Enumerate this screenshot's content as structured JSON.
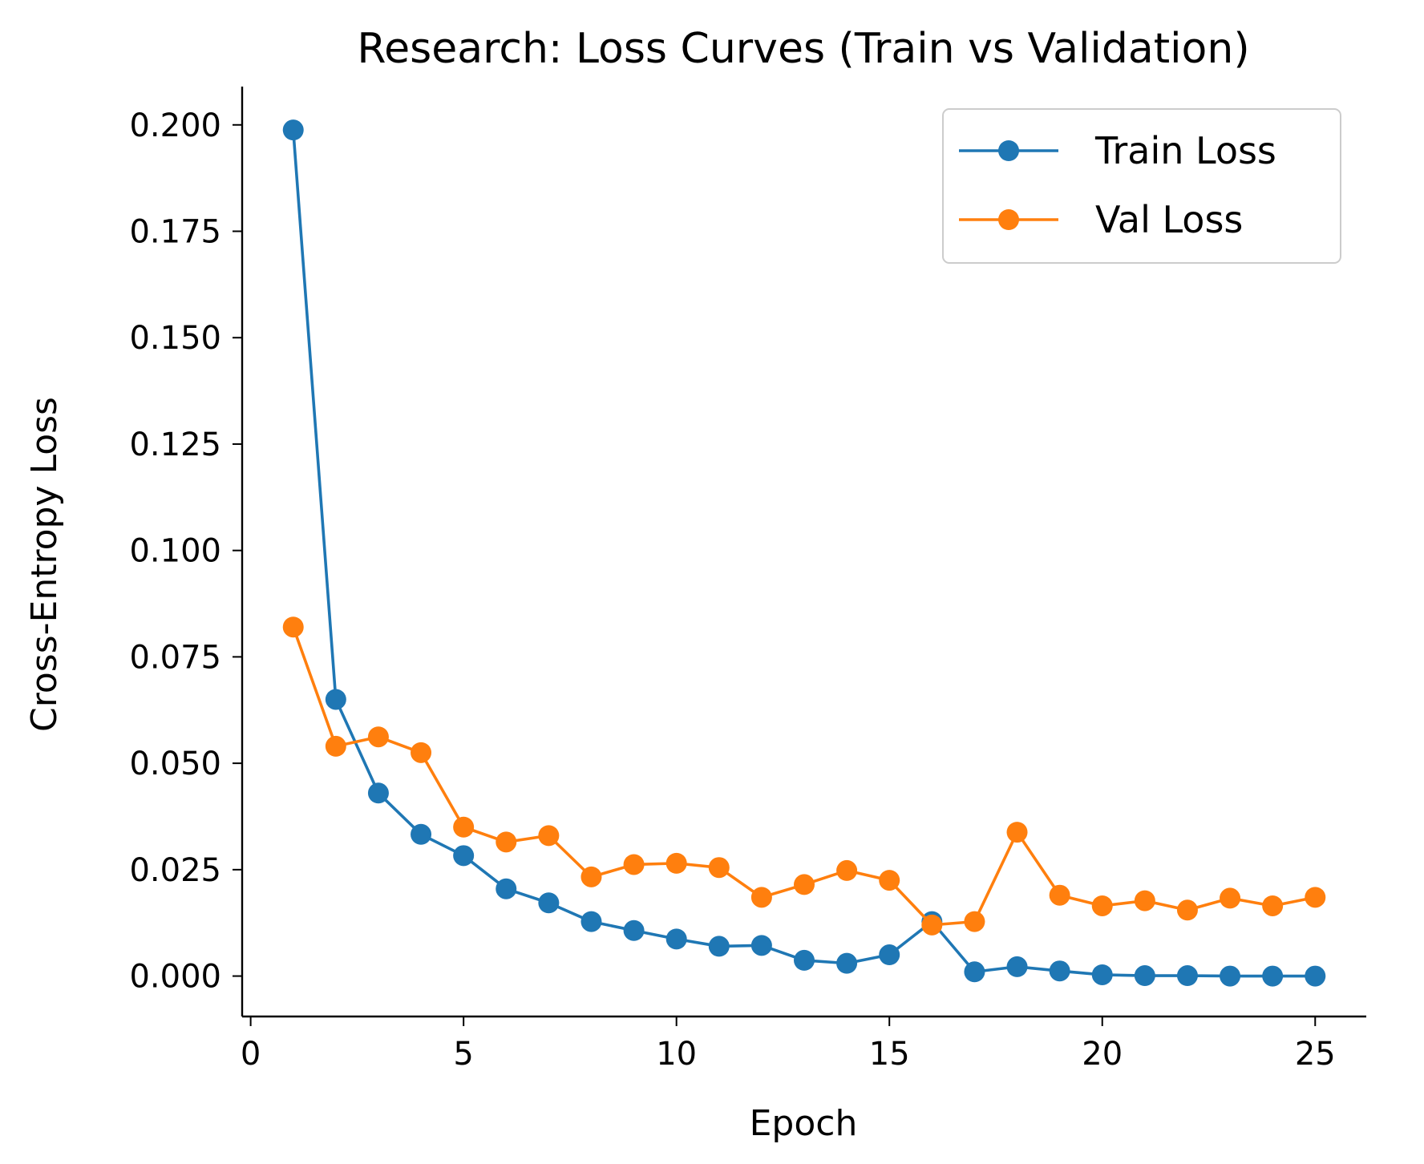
{
  "chart_data": {
    "type": "line",
    "title": "Research: Loss Curves (Train vs Validation)",
    "xlabel": "Epoch",
    "ylabel": "Cross-Entropy Loss",
    "xlim": [
      -0.2,
      26.2
    ],
    "ylim": [
      -0.0095,
      0.209
    ],
    "xticks": [
      0,
      5,
      10,
      15,
      20,
      25
    ],
    "xtick_labels": [
      "0",
      "5",
      "10",
      "15",
      "20",
      "25"
    ],
    "yticks": [
      0.0,
      0.025,
      0.05,
      0.075,
      0.1,
      0.125,
      0.15,
      0.175,
      0.2
    ],
    "ytick_labels": [
      "0.000",
      "0.025",
      "0.050",
      "0.075",
      "0.100",
      "0.125",
      "0.150",
      "0.175",
      "0.200"
    ],
    "grid": false,
    "legend_position": "top-right",
    "x": [
      1,
      2,
      3,
      4,
      5,
      6,
      7,
      8,
      9,
      10,
      11,
      12,
      13,
      14,
      15,
      16,
      17,
      18,
      19,
      20,
      21,
      22,
      23,
      24,
      25
    ],
    "series": [
      {
        "name": "Train Loss",
        "color": "#1f77b4",
        "values": [
          0.1988,
          0.065,
          0.043,
          0.0333,
          0.0283,
          0.0205,
          0.0172,
          0.0128,
          0.0107,
          0.0087,
          0.007,
          0.0072,
          0.0037,
          0.003,
          0.005,
          0.0128,
          0.001,
          0.0022,
          0.0012,
          0.0003,
          0.0001,
          0.0001,
          0.0,
          0.0,
          0.0
        ]
      },
      {
        "name": "Val Loss",
        "color": "#ff7f0e",
        "values": [
          0.082,
          0.054,
          0.0562,
          0.0525,
          0.035,
          0.0315,
          0.033,
          0.0233,
          0.0262,
          0.0265,
          0.0255,
          0.0185,
          0.0215,
          0.0248,
          0.0225,
          0.012,
          0.0128,
          0.0338,
          0.019,
          0.0165,
          0.0177,
          0.0155,
          0.0183,
          0.0165,
          0.0185
        ]
      }
    ]
  }
}
